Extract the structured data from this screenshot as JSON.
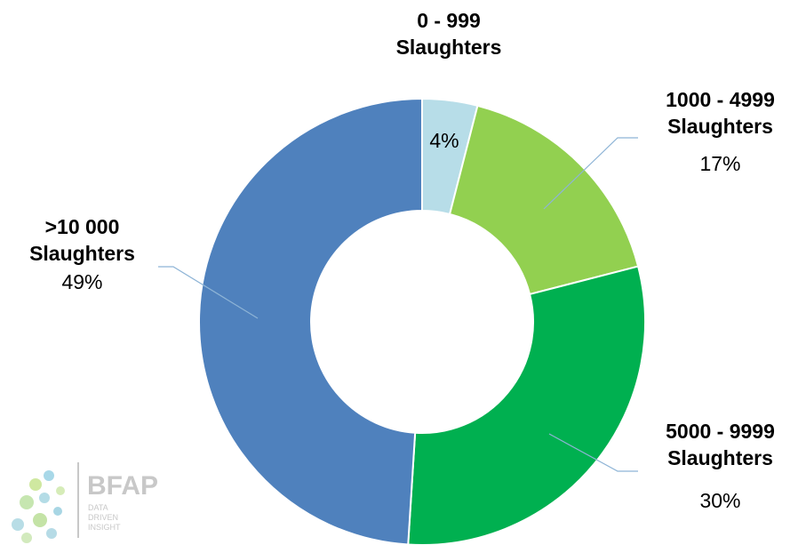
{
  "chart_data": {
    "type": "donut",
    "categories": [
      "0 - 999 Slaughters",
      "1000 - 4999 Slaughters",
      "5000 - 9999 Slaughters",
      ">10 000 Slaughters"
    ],
    "values": [
      4,
      17,
      30,
      49
    ],
    "value_labels": [
      "4%",
      "17%",
      "30%",
      "49%"
    ],
    "colors": [
      "#b7dde8",
      "#92d050",
      "#00b050",
      "#4f81bd"
    ]
  },
  "logo": {
    "name": "BFAP",
    "tagline": [
      "DATA",
      "DRIVEN",
      "INSIGHT"
    ]
  }
}
